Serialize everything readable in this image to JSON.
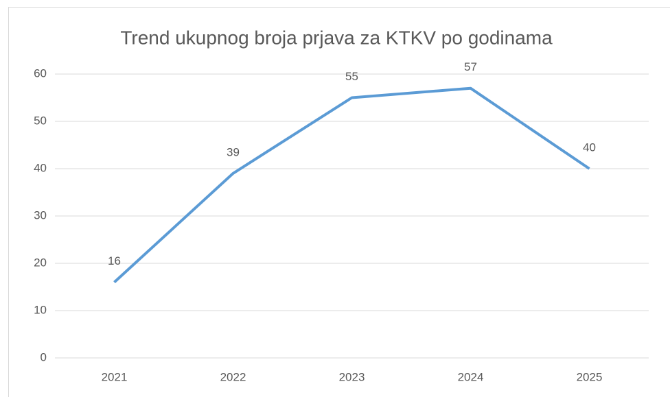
{
  "chart_data": {
    "type": "line",
    "title": "Trend ukupnog broja prjava za KTKV po godinama",
    "categories": [
      "2021",
      "2022",
      "2023",
      "2024",
      "2025"
    ],
    "values": [
      16,
      39,
      55,
      57,
      40
    ],
    "color": "#5b9bd5",
    "ylim": [
      0,
      60
    ],
    "yticks": [
      0,
      10,
      20,
      30,
      40,
      50,
      60
    ],
    "grid": true
  }
}
